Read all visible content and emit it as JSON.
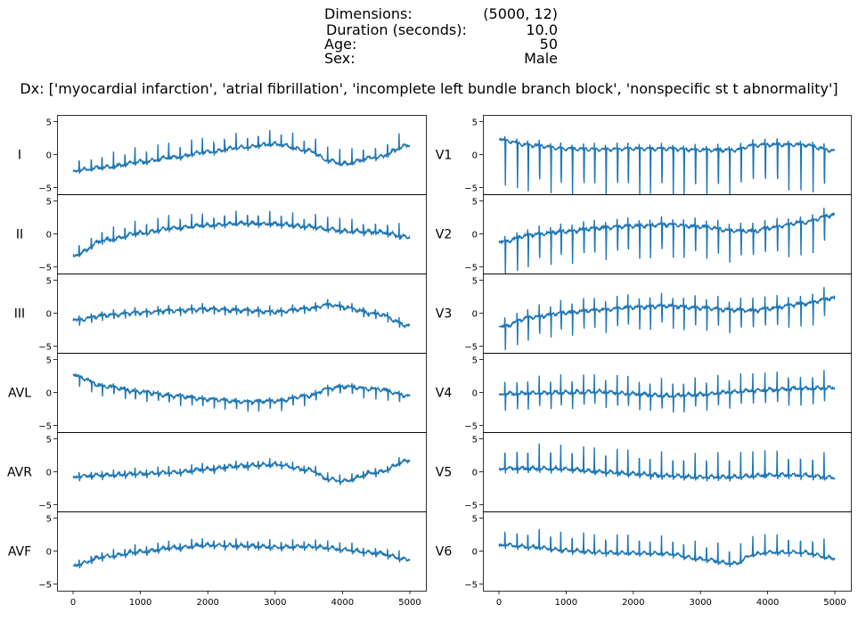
{
  "header": {
    "rows": [
      {
        "key": "Dimensions:",
        "value": "(5000, 12)"
      },
      {
        "key": "Duration (seconds):",
        "value": "10.0"
      },
      {
        "key": "Age:",
        "value": "50"
      },
      {
        "key": "Sex:",
        "value": "Male"
      }
    ],
    "dx_line": "Dx: ['myocardial infarction', 'atrial fibrillation', 'incomplete left bundle branch block', 'nonspecific st t abnormality']"
  },
  "chart_data": {
    "type": "line",
    "line_color": "#1f77b4",
    "x_range": [
      0,
      5000
    ],
    "x_ticks": [
      0,
      1000,
      2000,
      3000,
      4000,
      5000
    ],
    "x_tick_labels": [
      "0",
      "1000",
      "2000",
      "3000",
      "4000",
      "5000"
    ],
    "y_range": [
      -6,
      6
    ],
    "y_ticks": [
      -5,
      0,
      5
    ],
    "y_tick_labels": [
      "−5",
      "0",
      "5"
    ],
    "layout": "6 rows x 2 columns, stacked panels sharing x-axis",
    "approximate_description": "Waveforms are approximations digitized by eye; each lead shown as baseline wander + beat spikes (~28 beats over 5000 samples).",
    "beat_positions": [
      90,
      270,
      430,
      600,
      770,
      920,
      1090,
      1260,
      1420,
      1590,
      1760,
      1920,
      2090,
      2250,
      2420,
      2590,
      2750,
      2920,
      3090,
      3260,
      3430,
      3600,
      3780,
      3960,
      4140,
      4310,
      4490,
      4670,
      4840
    ],
    "baseline_x": [
      0,
      500,
      1000,
      1500,
      2000,
      2500,
      3000,
      3500,
      3800,
      4000,
      4500,
      5000
    ],
    "series": [
      {
        "name": "I",
        "column": 0,
        "baseline": [
          -2.5,
          -2.0,
          -1.2,
          -0.5,
          0.3,
          1.0,
          1.5,
          0.5,
          -1.0,
          -1.5,
          -0.5,
          1.3
        ],
        "spike_up": 2.3,
        "spike_down": -0.4,
        "noise": 0.25
      },
      {
        "name": "II",
        "column": 0,
        "baseline": [
          -3.3,
          -1.0,
          0.0,
          0.8,
          1.2,
          1.5,
          1.4,
          1.0,
          0.6,
          0.3,
          0.2,
          -0.6
        ],
        "spike_up": 2.0,
        "spike_down": -0.5,
        "noise": 0.3
      },
      {
        "name": "III",
        "column": 0,
        "baseline": [
          -1.0,
          -0.2,
          0.2,
          0.5,
          0.7,
          0.5,
          0.3,
          0.8,
          1.4,
          1.0,
          0.0,
          -1.8
        ],
        "spike_up": 0.8,
        "spike_down": -0.9,
        "noise": 0.25
      },
      {
        "name": "AVL",
        "column": 0,
        "baseline": [
          2.6,
          1.0,
          0.2,
          -0.4,
          -0.9,
          -1.3,
          -1.2,
          -0.4,
          0.7,
          1.0,
          0.6,
          -0.4
        ],
        "spike_up": 0.4,
        "spike_down": -1.6,
        "noise": 0.25
      },
      {
        "name": "AVR",
        "column": 0,
        "baseline": [
          -0.8,
          -0.6,
          -0.4,
          -0.2,
          0.3,
          0.8,
          1.0,
          0.2,
          -1.2,
          -1.5,
          -0.2,
          1.6
        ],
        "spike_up": 1.0,
        "spike_down": -0.6,
        "noise": 0.25
      },
      {
        "name": "AVF",
        "column": 0,
        "baseline": [
          -2.2,
          -0.9,
          -0.2,
          0.4,
          0.8,
          0.7,
          0.5,
          0.6,
          0.4,
          0.1,
          -0.4,
          -1.4
        ],
        "spike_up": 1.2,
        "spike_down": -0.6,
        "noise": 0.25
      },
      {
        "name": "V1",
        "column": 1,
        "baseline": [
          2.3,
          1.5,
          1.0,
          0.9,
          1.0,
          1.0,
          0.8,
          0.8,
          1.5,
          1.6,
          1.6,
          0.7
        ],
        "spike_up": 0.8,
        "spike_down": -7.0,
        "noise": 0.2
      },
      {
        "name": "V2",
        "column": 1,
        "baseline": [
          -1.2,
          0.0,
          0.5,
          1.0,
          1.3,
          1.5,
          1.2,
          0.6,
          0.5,
          1.0,
          1.8,
          3.0
        ],
        "spike_up": 1.2,
        "spike_down": -5.0,
        "noise": 0.25
      },
      {
        "name": "V3",
        "column": 1,
        "baseline": [
          -2.0,
          -0.5,
          0.2,
          0.6,
          1.0,
          1.2,
          0.9,
          0.6,
          0.5,
          0.8,
          1.5,
          2.4
        ],
        "spike_up": 1.8,
        "spike_down": -3.6,
        "noise": 0.25
      },
      {
        "name": "V4",
        "column": 1,
        "baseline": [
          -0.3,
          -0.2,
          -0.1,
          0.0,
          -0.3,
          -0.6,
          -0.4,
          0.0,
          0.2,
          0.3,
          0.5,
          0.6
        ],
        "spike_up": 2.8,
        "spike_down": -2.4,
        "noise": 0.25
      },
      {
        "name": "V5",
        "column": 1,
        "baseline": [
          0.4,
          0.4,
          0.3,
          -0.1,
          -0.4,
          -0.7,
          -0.9,
          -0.9,
          -0.7,
          -0.6,
          -0.6,
          -1.0
        ],
        "spike_up": 3.8,
        "spike_down": -0.6,
        "noise": 0.25
      },
      {
        "name": "V6",
        "column": 1,
        "baseline": [
          0.9,
          0.5,
          0.0,
          -0.3,
          -0.4,
          -0.5,
          -1.3,
          -2.0,
          -0.6,
          -0.3,
          -0.3,
          -1.2
        ],
        "spike_up": 2.9,
        "spike_down": -0.5,
        "noise": 0.2
      }
    ]
  }
}
